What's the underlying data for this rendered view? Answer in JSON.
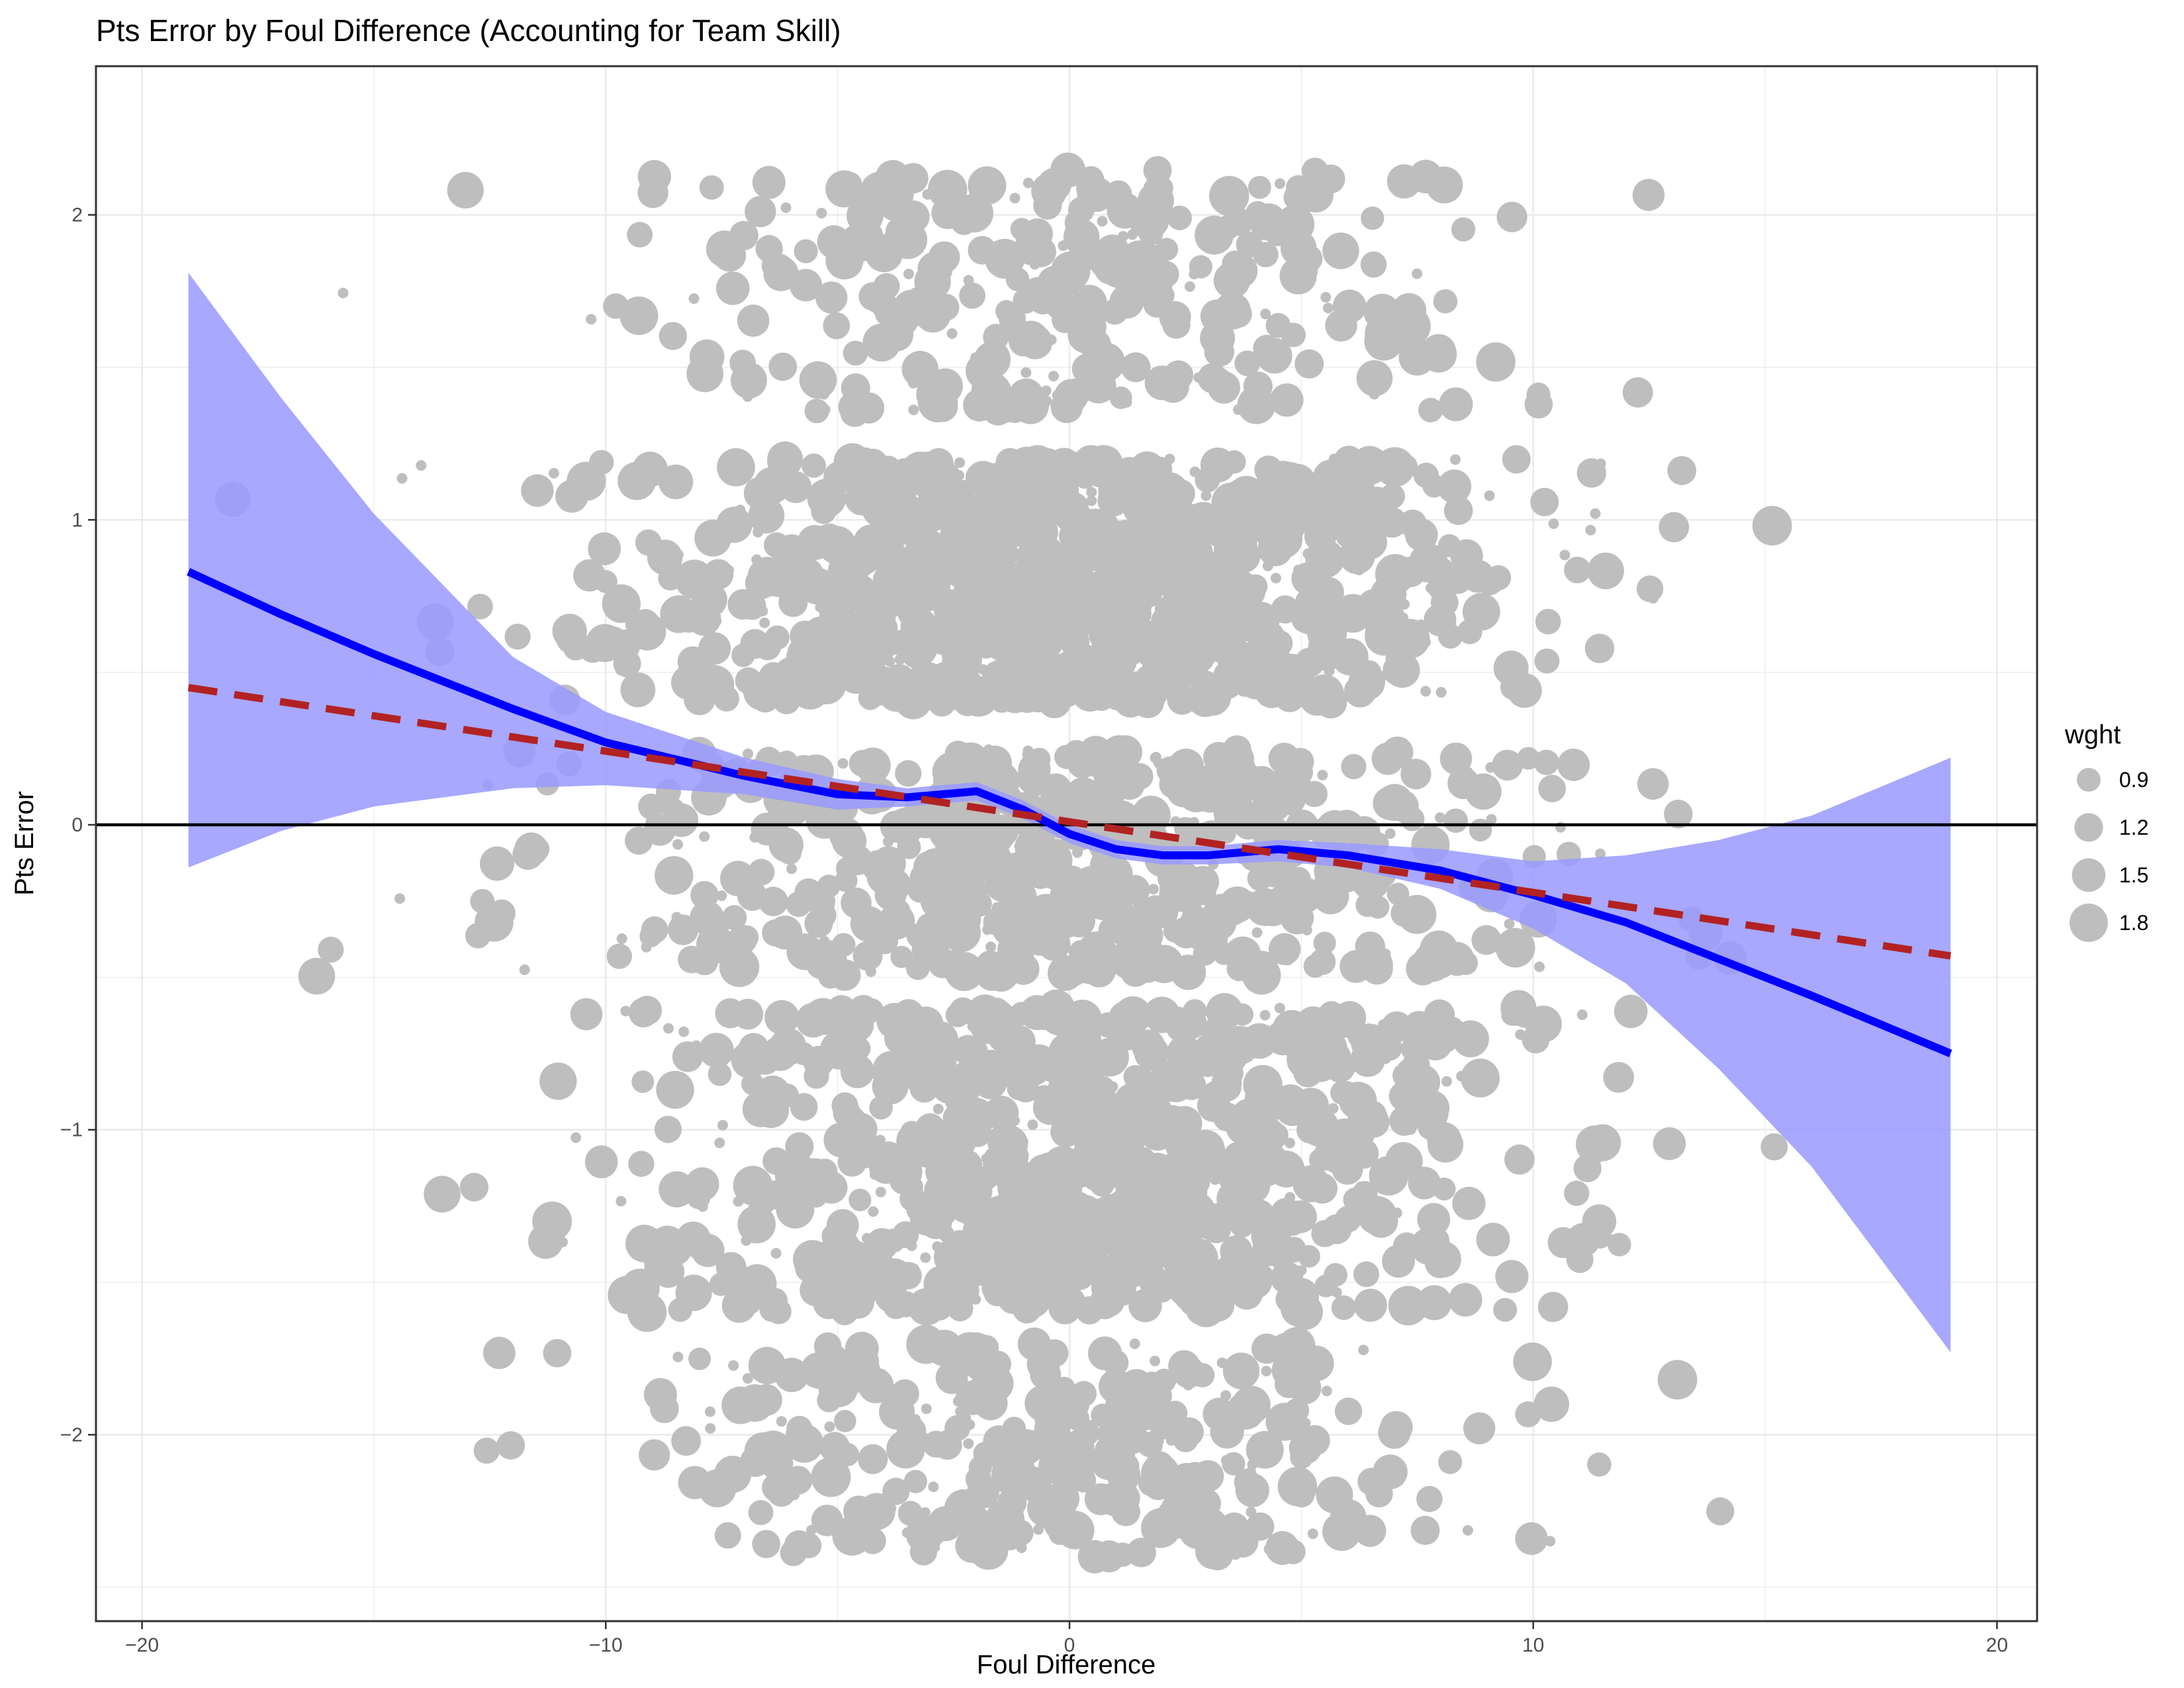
{
  "chart_data": {
    "type": "scatter",
    "title": "Pts Error by Foul Difference (Accounting for Team Skill)",
    "xlabel": "Foul Difference",
    "ylabel": "Pts Error",
    "xlim": [
      -21,
      21
    ],
    "ylim": [
      -2.55,
      2.5
    ],
    "x_ticks": [
      -20,
      -10,
      0,
      10,
      20
    ],
    "x_tick_labels": [
      "−20",
      "−10",
      "0",
      "10",
      "20"
    ],
    "y_ticks": [
      -2,
      -1,
      0,
      1,
      2
    ],
    "y_tick_labels": [
      "−2",
      "−1",
      "0",
      "1",
      "2"
    ],
    "grid": true,
    "reference_line_y": 0,
    "legend": {
      "title": "wght",
      "placement": "right",
      "entries": [
        {
          "label": "0.9",
          "value": 0.9
        },
        {
          "label": "1.2",
          "value": 1.2
        },
        {
          "label": "1.5",
          "value": 1.5
        },
        {
          "label": "1.8",
          "value": 1.8
        }
      ]
    },
    "point_color": "#bebebe",
    "point_clusters": [
      {
        "y_range": [
          1.35,
          2.15
        ],
        "x_sd": 4.5,
        "count": 320
      },
      {
        "y_range": [
          0.4,
          1.2
        ],
        "x_sd": 4.8,
        "count": 950
      },
      {
        "y_range": [
          -0.5,
          0.25
        ],
        "x_sd": 4.8,
        "count": 600
      },
      {
        "y_range": [
          -1.6,
          -0.6
        ],
        "x_sd": 4.6,
        "count": 850
      },
      {
        "y_range": [
          -2.4,
          -1.7
        ],
        "x_sd": 4.4,
        "count": 360
      }
    ],
    "loess": {
      "color": "#0000ff",
      "x": [
        -19,
        -17,
        -15,
        -12,
        -10,
        -7,
        -5,
        -3.5,
        -2,
        -1,
        0,
        1,
        2,
        3,
        4.5,
        6,
        8,
        10,
        12,
        14,
        16,
        19
      ],
      "y": [
        0.83,
        0.69,
        0.56,
        0.38,
        0.27,
        0.16,
        0.1,
        0.09,
        0.11,
        0.05,
        -0.03,
        -0.08,
        -0.1,
        -0.1,
        -0.08,
        -0.1,
        -0.15,
        -0.23,
        -0.32,
        -0.44,
        -0.56,
        -0.75
      ],
      "upper": [
        1.81,
        1.4,
        1.02,
        0.55,
        0.37,
        0.22,
        0.15,
        0.12,
        0.14,
        0.08,
        0.0,
        -0.05,
        -0.07,
        -0.07,
        -0.05,
        -0.06,
        -0.08,
        -0.12,
        -0.1,
        -0.05,
        0.03,
        0.22
      ],
      "lower": [
        -0.14,
        -0.02,
        0.06,
        0.12,
        0.13,
        0.1,
        0.05,
        0.06,
        0.08,
        0.02,
        -0.06,
        -0.11,
        -0.13,
        -0.13,
        -0.12,
        -0.14,
        -0.21,
        -0.34,
        -0.52,
        -0.8,
        -1.12,
        -1.73
      ],
      "ribbon_color": "#9999ff"
    },
    "linear_fit": {
      "color": "#b22222",
      "x": [
        -19,
        19
      ],
      "y": [
        0.45,
        -0.43
      ],
      "style": "dashed"
    }
  }
}
